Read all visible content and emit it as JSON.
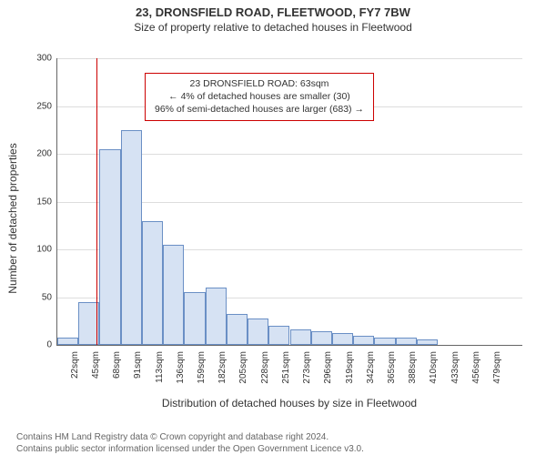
{
  "header": {
    "title": "23, DRONSFIELD ROAD, FLEETWOOD, FY7 7BW",
    "subtitle": "Size of property relative to detached houses in Fleetwood"
  },
  "chart": {
    "type": "histogram",
    "y_axis": {
      "label": "Number of detached properties",
      "min": 0,
      "max": 300,
      "tick_step": 50,
      "tick_color": "#333333",
      "grid_color": "#dddddd"
    },
    "x_axis": {
      "label": "Distribution of detached houses by size in Fleetwood",
      "ticks": [
        "22sqm",
        "45sqm",
        "68sqm",
        "91sqm",
        "113sqm",
        "136sqm",
        "159sqm",
        "182sqm",
        "205sqm",
        "228sqm",
        "251sqm",
        "273sqm",
        "296sqm",
        "319sqm",
        "342sqm",
        "365sqm",
        "388sqm",
        "410sqm",
        "433sqm",
        "456sqm",
        "479sqm"
      ]
    },
    "bars": {
      "values": [
        8,
        45,
        205,
        225,
        130,
        105,
        55,
        60,
        32,
        28,
        20,
        16,
        14,
        12,
        10,
        8,
        8,
        6,
        0,
        0,
        0,
        0
      ],
      "fill_color": "#d6e2f3",
      "border_color": "#6a8fc5"
    },
    "reference_line": {
      "position_index": 1.85,
      "color": "#cc0000"
    },
    "info_box": {
      "line1": "23 DRONSFIELD ROAD: 63sqm",
      "line2": "← 4% of detached houses are smaller (30)",
      "line3": "96% of semi-detached houses are larger (683) →",
      "border_color": "#cc0000",
      "background": "#ffffff",
      "fontsize": 10.5
    },
    "plot": {
      "background": "#ffffff",
      "axis_color": "#666666"
    }
  },
  "footer": {
    "line1": "Contains HM Land Registry data © Crown copyright and database right 2024.",
    "line2": "Contains public sector information licensed under the Open Government Licence v3.0.",
    "color": "#666666"
  }
}
